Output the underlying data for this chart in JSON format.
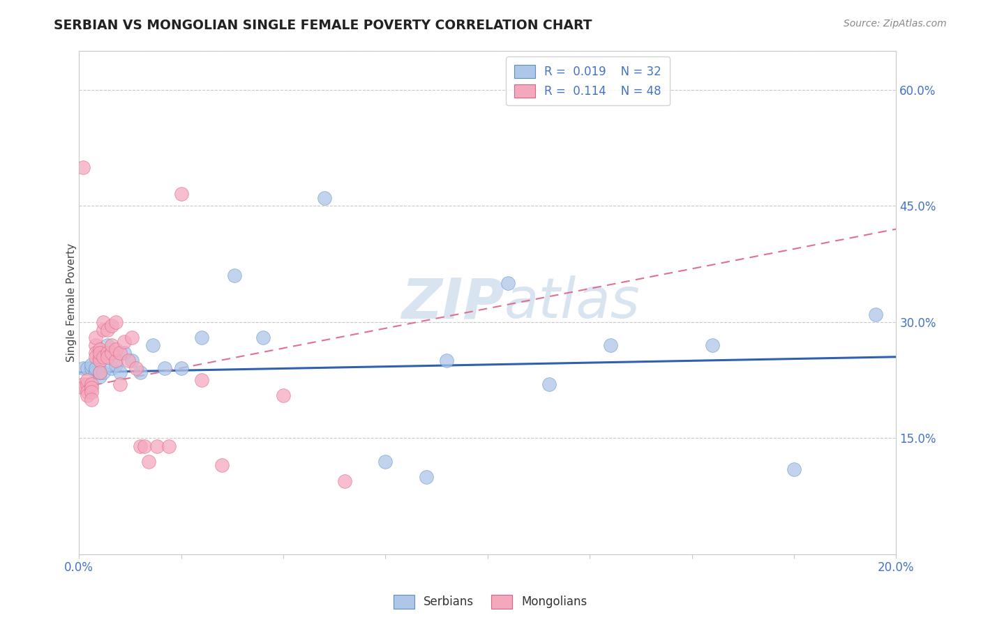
{
  "title": "SERBIAN VS MONGOLIAN SINGLE FEMALE POVERTY CORRELATION CHART",
  "source": "Source: ZipAtlas.com",
  "ylabel": "Single Female Poverty",
  "xlim": [
    0.0,
    0.2
  ],
  "ylim": [
    0.0,
    0.65
  ],
  "ytick_right": [
    0.15,
    0.3,
    0.45,
    0.6
  ],
  "ytick_right_labels": [
    "15.0%",
    "30.0%",
    "45.0%",
    "60.0%"
  ],
  "legend_serbian": {
    "R": "0.019",
    "N": "32"
  },
  "legend_mongolian": {
    "R": "0.114",
    "N": "48"
  },
  "serbian_color": "#aec6e8",
  "mongolian_color": "#f4a8be",
  "serbian_edge_color": "#5b8fc9",
  "mongolian_edge_color": "#e06080",
  "serbian_line_color": "#3060b0",
  "mongolian_line_color": "#e07090",
  "watermark_color": "#d8e4f0",
  "serbians_x": [
    0.001,
    0.002,
    0.003,
    0.003,
    0.004,
    0.004,
    0.005,
    0.005,
    0.006,
    0.007,
    0.008,
    0.009,
    0.01,
    0.011,
    0.013,
    0.015,
    0.018,
    0.021,
    0.025,
    0.03,
    0.038,
    0.045,
    0.06,
    0.075,
    0.085,
    0.09,
    0.105,
    0.115,
    0.13,
    0.155,
    0.175,
    0.195
  ],
  "serbians_y": [
    0.24,
    0.24,
    0.24,
    0.245,
    0.235,
    0.24,
    0.23,
    0.235,
    0.235,
    0.27,
    0.24,
    0.245,
    0.235,
    0.26,
    0.25,
    0.235,
    0.27,
    0.24,
    0.24,
    0.28,
    0.36,
    0.28,
    0.46,
    0.12,
    0.1,
    0.25,
    0.35,
    0.22,
    0.27,
    0.27,
    0.11,
    0.31
  ],
  "mongolians_x": [
    0.001,
    0.001,
    0.001,
    0.002,
    0.002,
    0.002,
    0.002,
    0.003,
    0.003,
    0.003,
    0.003,
    0.004,
    0.004,
    0.004,
    0.004,
    0.005,
    0.005,
    0.005,
    0.005,
    0.005,
    0.006,
    0.006,
    0.006,
    0.007,
    0.007,
    0.007,
    0.008,
    0.008,
    0.008,
    0.009,
    0.009,
    0.009,
    0.01,
    0.01,
    0.011,
    0.012,
    0.013,
    0.014,
    0.015,
    0.016,
    0.017,
    0.019,
    0.022,
    0.025,
    0.03,
    0.035,
    0.05,
    0.065
  ],
  "mongolians_y": [
    0.5,
    0.22,
    0.215,
    0.22,
    0.225,
    0.21,
    0.205,
    0.22,
    0.215,
    0.21,
    0.2,
    0.27,
    0.26,
    0.255,
    0.28,
    0.265,
    0.255,
    0.25,
    0.235,
    0.26,
    0.29,
    0.3,
    0.255,
    0.26,
    0.29,
    0.255,
    0.26,
    0.295,
    0.27,
    0.25,
    0.3,
    0.265,
    0.26,
    0.22,
    0.275,
    0.25,
    0.28,
    0.24,
    0.14,
    0.14,
    0.12,
    0.14,
    0.14,
    0.465,
    0.225,
    0.115,
    0.205,
    0.095
  ],
  "serbian_trendline_x": [
    0.0,
    0.2
  ],
  "serbian_trendline_y": [
    0.235,
    0.255
  ],
  "mongolian_trendline_x": [
    0.0,
    0.2
  ],
  "mongolian_trendline_y": [
    0.215,
    0.42
  ]
}
